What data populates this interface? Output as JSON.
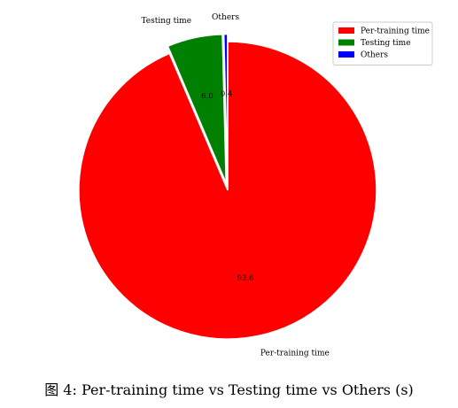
{
  "chart_data": {
    "type": "pie",
    "categories": [
      "Per-training time",
      "Testing time",
      "Others"
    ],
    "values": [
      93.6,
      6.0,
      0.4
    ],
    "value_labels": [
      "93.6",
      "6.0",
      "0.4"
    ],
    "colors": [
      "#ff0000",
      "#008000",
      "#0000ff"
    ],
    "explode": [
      0,
      0.05,
      0.05
    ],
    "start_angle_deg": 90,
    "direction": "clockwise",
    "legend": {
      "placement": "upper-right",
      "entries": [
        "Per-training time",
        "Testing time",
        "Others"
      ]
    }
  },
  "caption": "图 4: Per-training time vs Testing time vs Others (s)"
}
